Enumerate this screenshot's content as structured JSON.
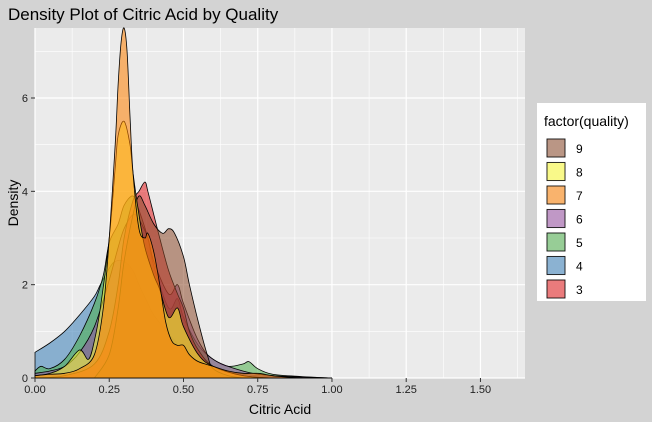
{
  "chart_data": {
    "type": "area",
    "title": "Density Plot of Citric Acid by Quality",
    "xlabel": "Citric Acid",
    "ylabel": "Density",
    "xlim": [
      0,
      1.65
    ],
    "ylim": [
      0,
      7.5
    ],
    "x_ticks": [
      0,
      0.25,
      0.5,
      0.75,
      1.0,
      1.25,
      1.5
    ],
    "x_tick_labels": [
      "0.00",
      "0.25",
      "0.50",
      "0.75",
      "1.00",
      "1.25",
      "1.50"
    ],
    "y_ticks": [
      0,
      2,
      4,
      6
    ],
    "y_tick_labels": [
      "0",
      "2",
      "4",
      "6"
    ],
    "grid": true,
    "panel_background": "#ebebeb",
    "legend": {
      "title": "factor(quality)",
      "position": "right",
      "entries": [
        "9",
        "8",
        "7",
        "6",
        "5",
        "4",
        "3"
      ]
    },
    "fill_opacity": 0.55,
    "series": [
      {
        "name": "4",
        "color": "#377eb8",
        "x": [
          0,
          0.05,
          0.1,
          0.15,
          0.2,
          0.22,
          0.25,
          0.27,
          0.3,
          0.33,
          0.35,
          0.38,
          0.4,
          0.45,
          0.5,
          0.55,
          0.6,
          0.7,
          0.8,
          1.0
        ],
        "y": [
          0.55,
          0.75,
          1.0,
          1.35,
          1.75,
          2.0,
          2.35,
          2.5,
          2.5,
          2.3,
          2.0,
          1.6,
          1.35,
          0.95,
          0.6,
          0.35,
          0.2,
          0.08,
          0.03,
          0
        ]
      },
      {
        "name": "5",
        "color": "#4daf4a",
        "x": [
          0,
          0.02,
          0.05,
          0.1,
          0.15,
          0.2,
          0.23,
          0.25,
          0.28,
          0.3,
          0.33,
          0.35,
          0.38,
          0.4,
          0.45,
          0.48,
          0.5,
          0.55,
          0.6,
          0.65,
          0.7,
          0.72,
          0.75,
          0.8,
          0.9,
          1.0
        ],
        "y": [
          0.15,
          0.25,
          0.2,
          0.4,
          0.9,
          1.6,
          2.2,
          2.9,
          3.3,
          3.7,
          3.9,
          3.6,
          3.0,
          2.4,
          1.5,
          1.7,
          1.3,
          0.7,
          0.4,
          0.25,
          0.3,
          0.35,
          0.2,
          0.08,
          0.03,
          0
        ]
      },
      {
        "name": "6",
        "color": "#984ea3",
        "x": [
          0,
          0.05,
          0.1,
          0.15,
          0.2,
          0.25,
          0.28,
          0.3,
          0.33,
          0.35,
          0.38,
          0.4,
          0.45,
          0.48,
          0.5,
          0.55,
          0.6,
          0.7,
          0.8,
          1.0
        ],
        "y": [
          0.1,
          0.15,
          0.25,
          0.55,
          1.1,
          2.1,
          2.8,
          3.2,
          3.5,
          3.4,
          3.0,
          2.5,
          1.8,
          2.0,
          1.6,
          0.8,
          0.4,
          0.15,
          0.05,
          0
        ]
      },
      {
        "name": "3",
        "color": "#e41a1c",
        "x": [
          0,
          0.1,
          0.2,
          0.25,
          0.28,
          0.3,
          0.33,
          0.35,
          0.37,
          0.38,
          0.4,
          0.42,
          0.45,
          0.48,
          0.5,
          0.52,
          0.55,
          0.6,
          0.7,
          0.8
        ],
        "y": [
          0,
          0.05,
          0.3,
          1.0,
          2.0,
          3.0,
          3.8,
          4.0,
          4.2,
          4.0,
          3.5,
          3.0,
          2.3,
          1.8,
          1.5,
          1.0,
          0.6,
          0.25,
          0.05,
          0
        ]
      },
      {
        "name": "9",
        "color": "#8c4a2b",
        "x": [
          0.2,
          0.25,
          0.28,
          0.3,
          0.33,
          0.35,
          0.37,
          0.4,
          0.43,
          0.45,
          0.47,
          0.5,
          0.52,
          0.55,
          0.58,
          0.6,
          0.65,
          0.7
        ],
        "y": [
          0,
          0.5,
          1.5,
          2.5,
          3.5,
          3.9,
          3.7,
          3.3,
          3.1,
          3.2,
          3.1,
          2.6,
          2.0,
          1.2,
          0.5,
          0.2,
          0.05,
          0
        ]
      },
      {
        "name": "8",
        "color": "#ffff33",
        "x": [
          0,
          0.05,
          0.1,
          0.15,
          0.18,
          0.2,
          0.22,
          0.25,
          0.27,
          0.28,
          0.3,
          0.32,
          0.33,
          0.35,
          0.37,
          0.4,
          0.42,
          0.45,
          0.48,
          0.5,
          0.55,
          0.6,
          0.7,
          0.8
        ],
        "y": [
          0.05,
          0.1,
          0.25,
          0.6,
          0.4,
          0.8,
          1.5,
          3.0,
          4.5,
          5.2,
          5.5,
          5.0,
          4.4,
          3.5,
          2.8,
          2.2,
          1.9,
          1.3,
          1.5,
          1.1,
          0.5,
          0.25,
          0.05,
          0
        ]
      },
      {
        "name": "7",
        "color": "#ff7f00",
        "x": [
          0,
          0.05,
          0.1,
          0.15,
          0.2,
          0.23,
          0.25,
          0.27,
          0.28,
          0.29,
          0.3,
          0.31,
          0.32,
          0.33,
          0.35,
          0.37,
          0.38,
          0.4,
          0.42,
          0.44,
          0.46,
          0.48,
          0.5,
          0.52,
          0.55,
          0.6,
          0.65,
          0.7,
          0.75,
          0.8,
          0.85,
          0.9
        ],
        "y": [
          0.05,
          0.08,
          0.1,
          0.2,
          0.5,
          1.5,
          3.0,
          5.0,
          6.3,
          7.2,
          7.5,
          7.0,
          5.6,
          4.4,
          3.2,
          3.0,
          3.1,
          2.7,
          2.0,
          1.2,
          0.8,
          0.7,
          0.7,
          0.5,
          0.35,
          0.25,
          0.15,
          0.1,
          0.1,
          0.05,
          0.02,
          0
        ]
      }
    ]
  }
}
